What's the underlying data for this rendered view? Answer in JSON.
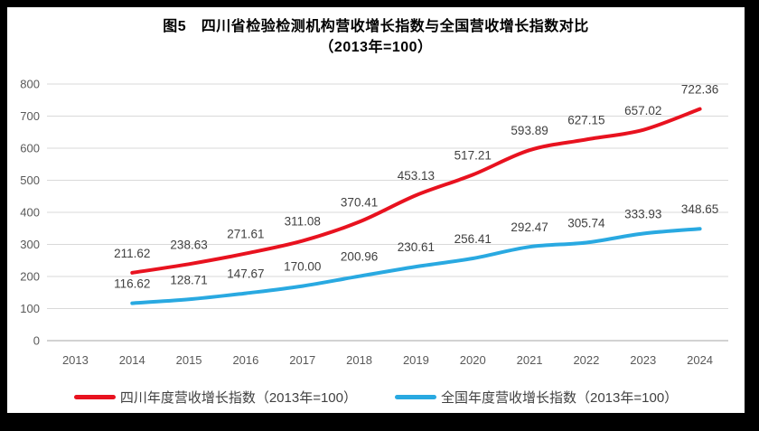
{
  "chart": {
    "title_line1": "图5　四川省检验检测机构营收增长指数与全国营收增长指数对比",
    "title_line2": "（2013年=100）"
  },
  "colors": {
    "sichuan_line": "#e8121f",
    "national_line": "#29a9e1",
    "gridline": "#d9d9d9",
    "zero_axis": "#a6a6a6",
    "tick_text": "#595959",
    "data_label_text": "#404040",
    "card_background": "#ffffff",
    "frame_background": "#000000"
  },
  "chart_data": {
    "type": "line",
    "title": "图5 四川省检验检测机构营收增长指数与全国营收增长指数对比（2013年=100）",
    "categories": [
      "2013",
      "2014",
      "2015",
      "2016",
      "2017",
      "2018",
      "2019",
      "2020",
      "2021",
      "2022",
      "2023",
      "2024"
    ],
    "series": [
      {
        "id": "sichuan",
        "name": "四川年度营收增长指数（2013年=100）",
        "color": "#e8121f",
        "x": [
          "2014",
          "2015",
          "2016",
          "2017",
          "2018",
          "2019",
          "2020",
          "2021",
          "2022",
          "2023",
          "2024"
        ],
        "values": [
          211.62,
          238.63,
          271.61,
          311.08,
          370.41,
          453.13,
          517.21,
          593.89,
          627.15,
          657.02,
          722.36
        ]
      },
      {
        "id": "national",
        "name": "全国年度营收增长指数（2013年=100）",
        "color": "#29a9e1",
        "x": [
          "2014",
          "2015",
          "2016",
          "2017",
          "2018",
          "2019",
          "2020",
          "2021",
          "2022",
          "2023",
          "2024"
        ],
        "values": [
          116.62,
          128.71,
          147.67,
          170.0,
          200.96,
          230.61,
          256.41,
          292.47,
          305.74,
          333.93,
          348.65
        ]
      }
    ],
    "xlabel": "",
    "ylabel": "",
    "ylim": [
      0,
      800
    ],
    "ytick_step": 100,
    "grid": true,
    "smooth_lines": true,
    "data_labels": true,
    "legend_position": "bottom"
  }
}
